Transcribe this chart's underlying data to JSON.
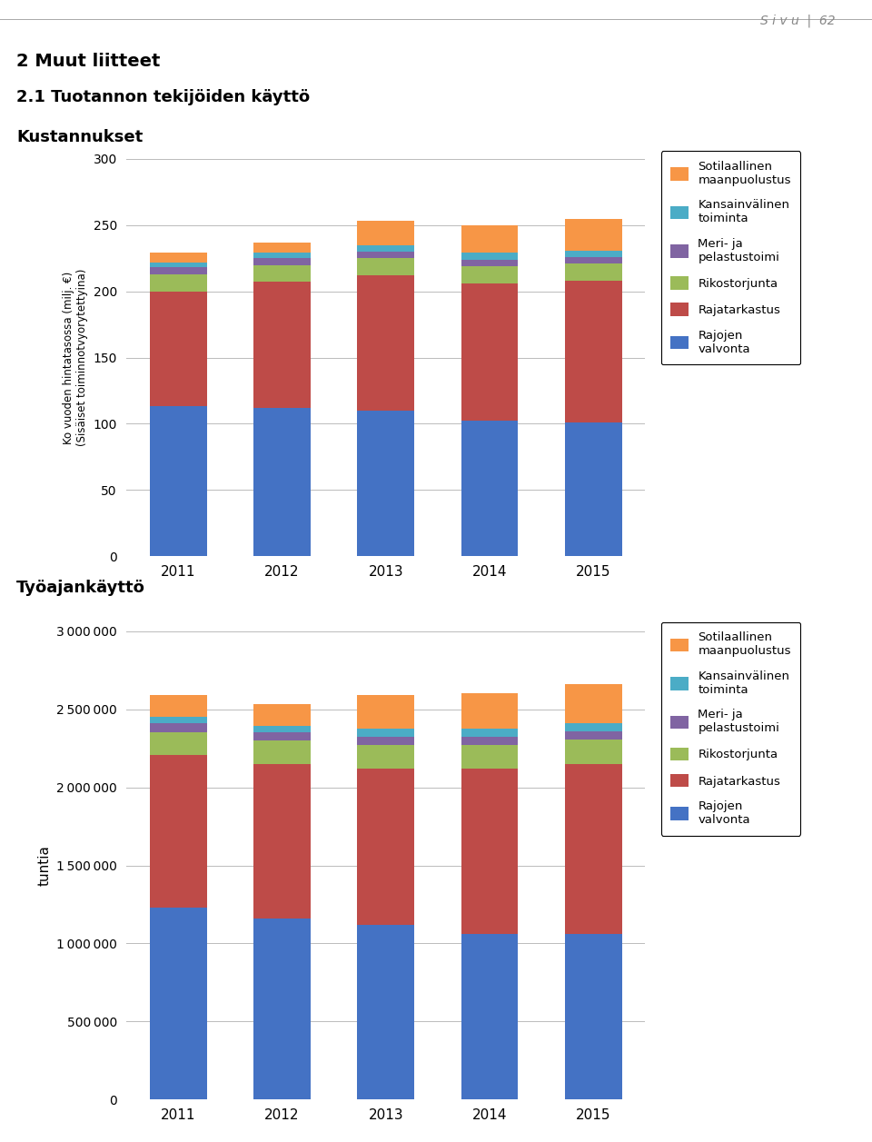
{
  "years": [
    "2011",
    "2012",
    "2013",
    "2014",
    "2015"
  ],
  "cost_rajojen_valvonta": [
    113,
    112,
    110,
    102,
    101
  ],
  "cost_rajatarkastus": [
    87,
    95,
    102,
    104,
    107
  ],
  "cost_rikostorjunta": [
    13,
    13,
    13,
    13,
    13
  ],
  "cost_meri": [
    5,
    5,
    5,
    5,
    5
  ],
  "cost_kansainvalinen": [
    4,
    4,
    5,
    5,
    5
  ],
  "cost_sotilaallinen": [
    7,
    8,
    18,
    21,
    24
  ],
  "work_rajojen_valvonta": [
    1230000,
    1160000,
    1120000,
    1060000,
    1060000
  ],
  "work_rajatarkastus": [
    975000,
    990000,
    1000000,
    1060000,
    1090000
  ],
  "work_rikostorjunta": [
    150000,
    150000,
    150000,
    150000,
    155000
  ],
  "work_meri": [
    55000,
    55000,
    55000,
    55000,
    55000
  ],
  "work_kansainvalinen": [
    40000,
    40000,
    50000,
    50000,
    50000
  ],
  "work_sotilaallinen": [
    140000,
    140000,
    220000,
    230000,
    250000
  ],
  "color_rajojen_valvonta": "#4472C4",
  "color_rajatarkastus": "#BE4B48",
  "color_rikostorjunta": "#9BBB59",
  "color_meri": "#8064A2",
  "color_kansainvalinen": "#4BACC6",
  "color_sotilaallinen": "#F79646",
  "cost_yticks": [
    0,
    50,
    100,
    150,
    200,
    250,
    300
  ],
  "work_yticks": [
    0,
    500000,
    1000000,
    1500000,
    2000000,
    2500000,
    3000000
  ],
  "legend_labels": [
    "Sotilaallinen\nmaanpuolustus",
    "Kansainvälinen\ntoiminta",
    "Meri- ja\npelastustoimi",
    "Rikostorjunta",
    "Rajatarkastus",
    "Rajojen\nvalvonta"
  ],
  "cost_ylabel": "Ko vuoden hintatasossa (milj. €)\n(Sisäiset toiminnotvyorytettyina)",
  "work_ylabel": "tuntia",
  "title1": "Kustannukset",
  "title2": "Työajankäyttö",
  "heading1": "2 Muut liitteet",
  "heading2": "2.1 Tuotannon tekijöiden käyttö",
  "page_text": "S i v u  |  62"
}
